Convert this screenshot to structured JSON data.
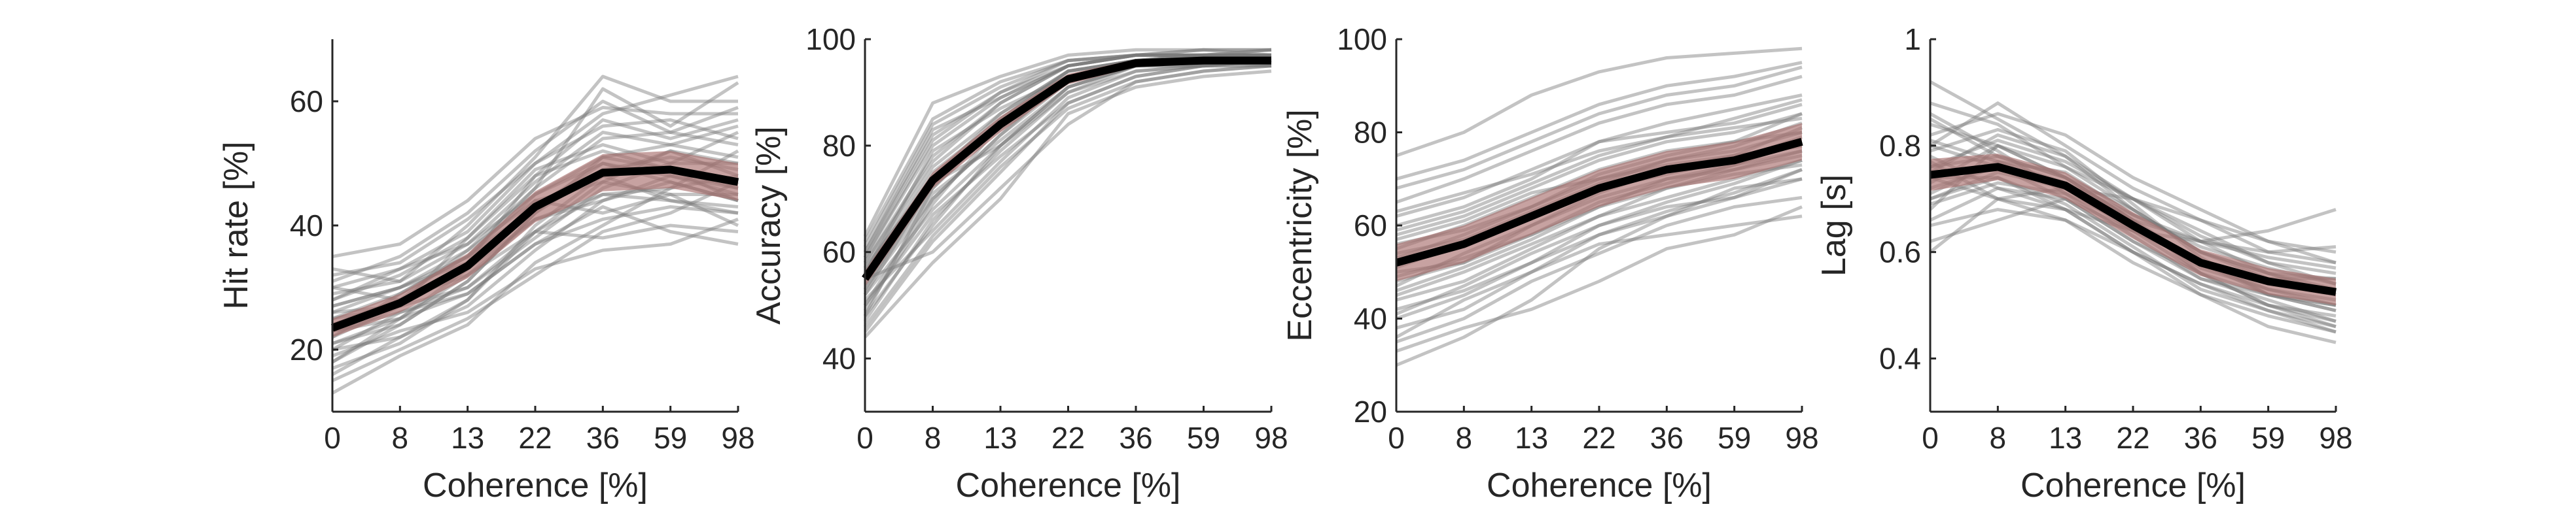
{
  "chart_data": [
    {
      "type": "line",
      "xlabel": "Coherence [%]",
      "ylabel": "Hit rate [%]",
      "categories": [
        "0",
        "8",
        "13",
        "22",
        "36",
        "59",
        "98"
      ],
      "ylim": [
        10,
        70
      ],
      "yticks": [
        20,
        40,
        60
      ],
      "grid": false,
      "series": [
        {
          "role": "mean",
          "values": [
            23.5,
            27.5,
            33.5,
            43,
            48.5,
            49,
            47
          ]
        }
      ],
      "band": {
        "lower": [
          22,
          26,
          31.5,
          40.5,
          45.5,
          46,
          44
        ],
        "upper": [
          25,
          29,
          35.5,
          45.5,
          51.5,
          52,
          50
        ]
      },
      "individual": [
        [
          30,
          28,
          36,
          46,
          62,
          56,
          63
        ],
        [
          18,
          24,
          31,
          42,
          51,
          49,
          44
        ],
        [
          26,
          30,
          34,
          48,
          57,
          54,
          57
        ],
        [
          21,
          25,
          29,
          37,
          41,
          43,
          42
        ],
        [
          33,
          31,
          40,
          51,
          64,
          60,
          60
        ],
        [
          16,
          22,
          27,
          36,
          44,
          48,
          46
        ],
        [
          25,
          27,
          38,
          49,
          53,
          50,
          50
        ],
        [
          20,
          26,
          30,
          39,
          38,
          40,
          39
        ],
        [
          28,
          33,
          39,
          50,
          58,
          61,
          64
        ],
        [
          23,
          25,
          32,
          41,
          45,
          44,
          43
        ],
        [
          13,
          19,
          24,
          34,
          40,
          46,
          52
        ],
        [
          31,
          35,
          42,
          52,
          60,
          55,
          53
        ],
        [
          24,
          28,
          33,
          43,
          48,
          52,
          48
        ],
        [
          19,
          23,
          26,
          33,
          36,
          37,
          41
        ],
        [
          35,
          37,
          44,
          54,
          59,
          58,
          58
        ],
        [
          22,
          29,
          35,
          45,
          50,
          47,
          44
        ],
        [
          26,
          27,
          30,
          38,
          46,
          50,
          55
        ],
        [
          17,
          21,
          28,
          39,
          47,
          45,
          40
        ],
        [
          29,
          31,
          37,
          47,
          55,
          53,
          51
        ],
        [
          21,
          24,
          31,
          42,
          49,
          51,
          49
        ],
        [
          27,
          30,
          36,
          44,
          42,
          45,
          45
        ],
        [
          15,
          20,
          25,
          32,
          39,
          42,
          47
        ],
        [
          32,
          34,
          41,
          50,
          56,
          57,
          54
        ],
        [
          23,
          26,
          29,
          37,
          43,
          39,
          37
        ],
        [
          25,
          29,
          35,
          46,
          54,
          55,
          59
        ],
        [
          20,
          22,
          28,
          40,
          48,
          44,
          42
        ],
        [
          28,
          32,
          38,
          48,
          52,
          49,
          46
        ],
        [
          18,
          25,
          33,
          44,
          47,
          52,
          50
        ],
        [
          24,
          28,
          32,
          39,
          45,
          46,
          48
        ],
        [
          27,
          30,
          35,
          43,
          50,
          48,
          45
        ],
        [
          22,
          27,
          33,
          41,
          44,
          47,
          44
        ],
        [
          30,
          33,
          37,
          45,
          51,
          53,
          56
        ]
      ]
    },
    {
      "type": "line",
      "xlabel": "Coherence [%]",
      "ylabel": "Accuracy [%]",
      "categories": [
        "0",
        "8",
        "13",
        "22",
        "36",
        "59",
        "98"
      ],
      "ylim": [
        30,
        100
      ],
      "yticks": [
        40,
        60,
        80,
        100
      ],
      "grid": false,
      "series": [
        {
          "role": "mean",
          "values": [
            55,
            73.5,
            84,
            92.5,
            95.5,
            96,
            96
          ]
        }
      ],
      "band": {
        "lower": [
          53.5,
          72,
          82.5,
          91.5,
          94.8,
          95.4,
          95.4
        ],
        "upper": [
          56.5,
          75,
          85.5,
          93.5,
          96.2,
          96.6,
          96.6
        ]
      },
      "individual": [
        [
          50,
          70,
          82,
          93,
          96,
          97,
          97
        ],
        [
          58,
          78,
          88,
          95,
          97,
          97,
          98
        ],
        [
          45,
          62,
          75,
          88,
          93,
          95,
          95
        ],
        [
          60,
          82,
          90,
          96,
          97,
          98,
          98
        ],
        [
          52,
          68,
          80,
          91,
          95,
          96,
          96
        ],
        [
          48,
          72,
          85,
          94,
          96,
          97,
          97
        ],
        [
          62,
          85,
          92,
          96,
          97,
          97,
          97
        ],
        [
          55,
          60,
          72,
          84,
          92,
          94,
          95
        ],
        [
          47,
          66,
          79,
          90,
          95,
          96,
          96
        ],
        [
          57,
          76,
          86,
          94,
          96,
          97,
          97
        ],
        [
          53,
          74,
          83,
          92,
          95,
          96,
          96
        ],
        [
          59,
          80,
          89,
          95,
          97,
          97,
          97
        ],
        [
          51,
          64,
          77,
          89,
          94,
          95,
          96
        ],
        [
          56,
          79,
          87,
          93,
          96,
          96,
          97
        ],
        [
          44,
          58,
          70,
          86,
          91,
          93,
          94
        ],
        [
          61,
          84,
          91,
          96,
          97,
          98,
          97
        ],
        [
          54,
          71,
          81,
          91,
          95,
          95,
          96
        ],
        [
          49,
          69,
          84,
          93,
          96,
          96,
          95
        ],
        [
          58,
          77,
          88,
          95,
          97,
          97,
          98
        ],
        [
          52,
          73,
          80,
          90,
          94,
          95,
          96
        ],
        [
          63,
          88,
          93,
          97,
          98,
          98,
          98
        ],
        [
          50,
          67,
          78,
          88,
          93,
          95,
          95
        ],
        [
          56,
          75,
          85,
          94,
          96,
          97,
          96
        ],
        [
          46,
          63,
          76,
          87,
          92,
          94,
          95
        ],
        [
          59,
          81,
          90,
          95,
          97,
          97,
          97
        ],
        [
          53,
          70,
          82,
          92,
          95,
          96,
          96
        ],
        [
          57,
          74,
          86,
          94,
          96,
          96,
          97
        ],
        [
          48,
          65,
          80,
          91,
          95,
          95,
          96
        ],
        [
          60,
          83,
          89,
          95,
          97,
          97,
          97
        ],
        [
          55,
          72,
          84,
          93,
          96,
          96,
          96
        ]
      ]
    },
    {
      "type": "line",
      "xlabel": "Coherence [%]",
      "ylabel": "Eccentricity [%]",
      "categories": [
        "0",
        "8",
        "13",
        "22",
        "36",
        "59",
        "98"
      ],
      "ylim": [
        20,
        100
      ],
      "yticks": [
        20,
        40,
        60,
        80,
        100
      ],
      "grid": false,
      "series": [
        {
          "role": "mean",
          "values": [
            52,
            56,
            62,
            68,
            72,
            74,
            78
          ]
        }
      ],
      "band": {
        "lower": [
          48,
          52,
          58,
          64,
          68,
          70,
          74
        ],
        "upper": [
          56,
          60,
          66,
          72,
          76,
          78,
          82
        ]
      },
      "individual": [
        [
          30,
          36,
          44,
          55,
          62,
          66,
          72
        ],
        [
          75,
          80,
          88,
          93,
          96,
          97,
          98
        ],
        [
          60,
          64,
          70,
          78,
          82,
          85,
          88
        ],
        [
          45,
          50,
          56,
          62,
          66,
          70,
          74
        ],
        [
          55,
          60,
          66,
          72,
          76,
          78,
          80
        ],
        [
          38,
          42,
          50,
          58,
          62,
          68,
          70
        ],
        [
          65,
          70,
          76,
          82,
          86,
          88,
          92
        ],
        [
          50,
          52,
          58,
          64,
          68,
          72,
          76
        ],
        [
          35,
          40,
          48,
          54,
          60,
          64,
          66
        ],
        [
          58,
          62,
          68,
          74,
          78,
          80,
          84
        ],
        [
          47,
          54,
          60,
          66,
          70,
          72,
          75
        ],
        [
          68,
          72,
          78,
          84,
          88,
          90,
          94
        ],
        [
          42,
          46,
          52,
          60,
          64,
          66,
          70
        ],
        [
          53,
          58,
          64,
          70,
          74,
          76,
          80
        ],
        [
          62,
          66,
          72,
          78,
          80,
          82,
          86
        ],
        [
          33,
          38,
          42,
          48,
          55,
          58,
          64
        ],
        [
          49,
          53,
          58,
          65,
          69,
          73,
          78
        ],
        [
          57,
          61,
          67,
          70,
          73,
          75,
          77
        ],
        [
          44,
          48,
          55,
          62,
          68,
          71,
          73
        ],
        [
          70,
          74,
          80,
          86,
          90,
          92,
          95
        ],
        [
          51,
          56,
          62,
          68,
          71,
          74,
          79
        ],
        [
          40,
          45,
          52,
          58,
          63,
          67,
          72
        ],
        [
          54,
          57,
          63,
          69,
          74,
          77,
          82
        ],
        [
          63,
          67,
          71,
          76,
          79,
          81,
          83
        ],
        [
          46,
          51,
          57,
          64,
          70,
          73,
          76
        ],
        [
          36,
          44,
          50,
          56,
          58,
          60,
          62
        ],
        [
          59,
          63,
          69,
          75,
          79,
          83,
          87
        ],
        [
          48,
          52,
          60,
          67,
          72,
          75,
          81
        ],
        [
          56,
          59,
          64,
          71,
          75,
          78,
          84
        ],
        [
          41,
          47,
          54,
          60,
          65,
          69,
          74
        ]
      ]
    },
    {
      "type": "line",
      "xlabel": "Coherence [%]",
      "ylabel": "Lag [s]",
      "categories": [
        "0",
        "8",
        "13",
        "22",
        "36",
        "59",
        "98"
      ],
      "ylim": [
        0.3,
        1.0
      ],
      "yticks": [
        0.4,
        0.6,
        0.8,
        1
      ],
      "ytick_labels": [
        "0.4",
        "0.6",
        "0.8",
        "1"
      ],
      "grid": false,
      "series": [
        {
          "role": "mean",
          "values": [
            0.745,
            0.76,
            0.725,
            0.65,
            0.58,
            0.545,
            0.525
          ]
        }
      ],
      "band": {
        "lower": [
          0.715,
          0.735,
          0.7,
          0.625,
          0.555,
          0.52,
          0.5
        ],
        "upper": [
          0.775,
          0.785,
          0.75,
          0.675,
          0.605,
          0.57,
          0.55
        ]
      },
      "individual": [
        [
          0.92,
          0.85,
          0.78,
          0.7,
          0.62,
          0.56,
          0.52
        ],
        [
          0.7,
          0.75,
          0.72,
          0.65,
          0.58,
          0.53,
          0.5
        ],
        [
          0.8,
          0.88,
          0.8,
          0.72,
          0.66,
          0.6,
          0.58
        ],
        [
          0.65,
          0.68,
          0.66,
          0.58,
          0.52,
          0.48,
          0.45
        ],
        [
          0.75,
          0.82,
          0.78,
          0.68,
          0.6,
          0.55,
          0.55
        ],
        [
          0.85,
          0.78,
          0.74,
          0.66,
          0.56,
          0.5,
          0.47
        ],
        [
          0.72,
          0.76,
          0.7,
          0.62,
          0.55,
          0.52,
          0.5
        ],
        [
          0.78,
          0.72,
          0.68,
          0.64,
          0.62,
          0.64,
          0.68
        ],
        [
          0.68,
          0.8,
          0.76,
          0.7,
          0.64,
          0.58,
          0.54
        ],
        [
          0.82,
          0.86,
          0.82,
          0.74,
          0.68,
          0.62,
          0.6
        ],
        [
          0.74,
          0.7,
          0.66,
          0.6,
          0.54,
          0.5,
          0.48
        ],
        [
          0.88,
          0.84,
          0.76,
          0.68,
          0.6,
          0.56,
          0.53
        ],
        [
          0.62,
          0.66,
          0.7,
          0.64,
          0.58,
          0.52,
          0.49
        ],
        [
          0.76,
          0.78,
          0.74,
          0.66,
          0.62,
          0.6,
          0.61
        ],
        [
          0.7,
          0.74,
          0.68,
          0.6,
          0.52,
          0.46,
          0.43
        ],
        [
          0.8,
          0.76,
          0.72,
          0.7,
          0.66,
          0.62,
          0.58
        ],
        [
          0.73,
          0.8,
          0.74,
          0.66,
          0.58,
          0.54,
          0.52
        ],
        [
          0.66,
          0.72,
          0.7,
          0.62,
          0.56,
          0.5,
          0.46
        ],
        [
          0.84,
          0.8,
          0.74,
          0.68,
          0.6,
          0.56,
          0.55
        ],
        [
          0.77,
          0.7,
          0.72,
          0.64,
          0.56,
          0.52,
          0.5
        ],
        [
          0.71,
          0.77,
          0.73,
          0.67,
          0.61,
          0.57,
          0.54
        ],
        [
          0.79,
          0.83,
          0.79,
          0.69,
          0.59,
          0.52,
          0.49
        ],
        [
          0.69,
          0.73,
          0.71,
          0.63,
          0.55,
          0.51,
          0.47
        ],
        [
          0.86,
          0.79,
          0.71,
          0.65,
          0.57,
          0.53,
          0.51
        ],
        [
          0.74,
          0.74,
          0.69,
          0.61,
          0.53,
          0.49,
          0.46
        ],
        [
          0.76,
          0.81,
          0.77,
          0.7,
          0.63,
          0.58,
          0.56
        ],
        [
          0.6,
          0.7,
          0.68,
          0.6,
          0.54,
          0.49,
          0.45
        ],
        [
          0.81,
          0.77,
          0.75,
          0.67,
          0.62,
          0.59,
          0.57
        ]
      ]
    }
  ]
}
